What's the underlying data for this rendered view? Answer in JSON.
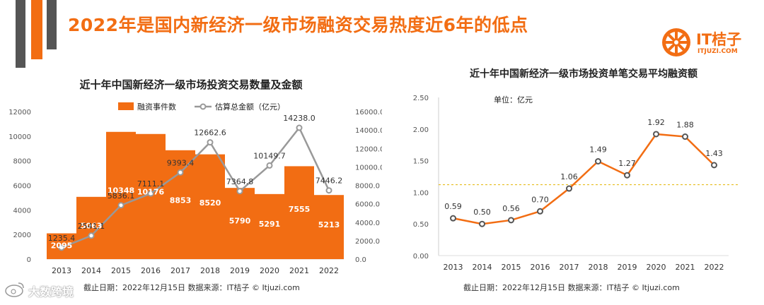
{
  "page": {
    "title": "2022年是国内新经济一级市场融资交易热度近6年的低点",
    "logo_name": "IT桔子",
    "logo_domain": "ITJUZI.COM",
    "watermark": "大数跨境",
    "colors": {
      "accent": "#f26d13",
      "gray": "#999999",
      "dark": "#555555"
    }
  },
  "chart_data": [
    {
      "type": "bar",
      "title": "近十年中国新经济一级市场投资交易数量及金额",
      "categories": [
        "2013",
        "2014",
        "2015",
        "2016",
        "2017",
        "2018",
        "2019",
        "2020",
        "2021",
        "2022"
      ],
      "series": [
        {
          "name": "融资事件数",
          "type": "bar",
          "axis": "left",
          "values": [
            2095,
            5063,
            10348,
            10176,
            8853,
            8520,
            5790,
            5291,
            7555,
            5213
          ],
          "labels": [
            "2095",
            "5063",
            "10348",
            "10176",
            "8853",
            "8520",
            "5790",
            "5291",
            "7555",
            "5213"
          ]
        },
        {
          "name": "估算总金额（亿元）",
          "type": "line",
          "axis": "right",
          "values": [
            1235.4,
            2541.1,
            5836.1,
            7111.1,
            9393.4,
            12662.6,
            7364.8,
            10149.7,
            14238.0,
            7446.2
          ],
          "labels": [
            "1235.4",
            "2541.1",
            "5836.1",
            "7111.1",
            "9393.4",
            "12662.6",
            "7364.8",
            "10149.7",
            "14238.0",
            "7446.2"
          ]
        }
      ],
      "ylim_left": [
        0,
        12000
      ],
      "yticks_left": [
        "0",
        "2000",
        "4000",
        "6000",
        "8000",
        "10000",
        "12000"
      ],
      "ylim_right": [
        0,
        16000
      ],
      "yticks_right": [
        "0.0",
        "2000.0",
        "4000.0",
        "6000.0",
        "8000.0",
        "10000.0",
        "12000.0",
        "14000.0",
        "16000.0"
      ],
      "legend_position": "top",
      "source": "截止日期：2022年12月15日    数据来源：IT桔子 © Itjuzi.com"
    },
    {
      "type": "line",
      "title": "近十年中国新经济一级市场投资单笔交易平均融资额",
      "unit_label": "单位：亿元",
      "categories": [
        "2013",
        "2014",
        "2015",
        "2016",
        "2017",
        "2018",
        "2019",
        "2020",
        "2021",
        "2022"
      ],
      "values": [
        0.59,
        0.5,
        0.56,
        0.7,
        1.06,
        1.49,
        1.27,
        1.92,
        1.88,
        1.43
      ],
      "labels": [
        "0.59",
        "0.50",
        "0.56",
        "0.70",
        "1.06",
        "1.49",
        "1.27",
        "1.92",
        "1.88",
        "1.43"
      ],
      "ylim": [
        0,
        2.5
      ],
      "yticks": [
        "0.00",
        "0.50",
        "1.00",
        "1.50",
        "2.00",
        "2.50"
      ],
      "reference_line": 1.12,
      "grid": false,
      "source": "截止日期：2022年12月15日    数据来源：IT桔子 © Itjuzi.com"
    }
  ]
}
